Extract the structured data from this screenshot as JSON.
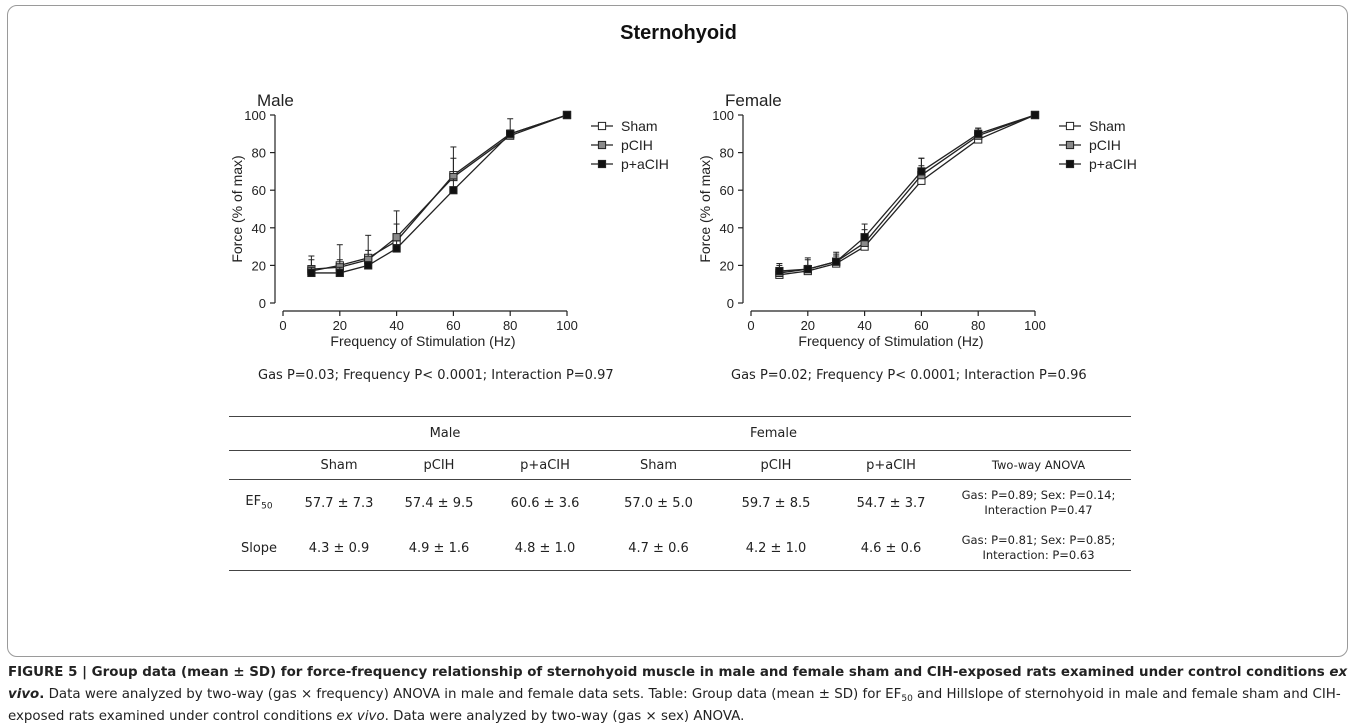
{
  "figure_title": "Sternohyoid",
  "chart_data": [
    {
      "type": "line",
      "title": "Male",
      "xlabel": "Frequency of Stimulation (Hz)",
      "ylabel": "Force  (% of max)",
      "xlim": [
        0,
        100
      ],
      "ylim": [
        0,
        100
      ],
      "xticks": [
        0,
        20,
        40,
        60,
        80,
        100
      ],
      "yticks": [
        0,
        20,
        40,
        60,
        80,
        100
      ],
      "x": [
        10,
        20,
        30,
        40,
        60,
        80,
        100
      ],
      "legend_position": "right",
      "series": [
        {
          "name": "Sham",
          "marker": "open-square",
          "values": [
            17,
            20,
            24,
            33,
            68,
            90,
            100
          ],
          "sd": [
            8,
            11,
            12,
            16,
            15,
            8,
            0
          ]
        },
        {
          "name": "pCIH",
          "marker": "gray-square",
          "values": [
            18,
            19,
            23,
            35,
            67,
            89,
            100
          ],
          "sd": [
            5,
            4,
            5,
            7,
            10,
            3,
            0
          ]
        },
        {
          "name": "p+aCIH",
          "marker": "filled-square",
          "values": [
            16,
            16,
            20,
            29,
            60,
            90,
            100
          ],
          "sd": [
            3,
            3,
            2,
            4,
            6,
            2,
            0
          ]
        }
      ],
      "stats_text": "Gas P=0.03; Frequency P< 0.0001; Interaction P=0.97"
    },
    {
      "type": "line",
      "title": "Female",
      "xlabel": "Frequency of Stimulation (Hz)",
      "ylabel": "Force  (% of max)",
      "xlim": [
        0,
        100
      ],
      "ylim": [
        0,
        100
      ],
      "xticks": [
        0,
        20,
        40,
        60,
        80,
        100
      ],
      "yticks": [
        0,
        20,
        40,
        60,
        80,
        100
      ],
      "x": [
        10,
        20,
        30,
        40,
        60,
        80,
        100
      ],
      "legend_position": "right",
      "series": [
        {
          "name": "Sham",
          "marker": "open-square",
          "values": [
            15,
            17,
            21,
            30,
            65,
            87,
            100
          ],
          "sd": [
            3,
            3,
            4,
            6,
            8,
            5,
            0
          ]
        },
        {
          "name": "pCIH",
          "marker": "gray-square",
          "values": [
            16,
            18,
            22,
            32,
            68,
            89,
            100
          ],
          "sd": [
            4,
            6,
            5,
            7,
            9,
            4,
            0
          ]
        },
        {
          "name": "p+aCIH",
          "marker": "filled-square",
          "values": [
            17,
            18,
            22,
            35,
            70,
            90,
            100
          ],
          "sd": [
            4,
            5,
            4,
            7,
            7,
            3,
            0
          ]
        }
      ],
      "stats_text": "Gas P=0.02; Frequency P< 0.0001; Interaction P=0.96"
    }
  ],
  "table": {
    "group_male": "Male",
    "group_female": "Female",
    "columns": [
      "Sham",
      "pCIH",
      "p+aCIH",
      "Sham",
      "pCIH",
      "p+aCIH"
    ],
    "anova_header": "Two-way ANOVA",
    "rows": [
      {
        "label": "EF",
        "label_sub": "50",
        "values": [
          "57.7 ± 7.3",
          "57.4 ± 9.5",
          "60.6 ± 3.6",
          "57.0 ± 5.0",
          "59.7 ± 8.5",
          "54.7 ± 3.7"
        ],
        "anova_line1": "Gas: P=0.89; Sex: P=0.14;",
        "anova_line2": "Interaction P=0.47"
      },
      {
        "label": "Slope",
        "label_sub": "",
        "values": [
          "4.3 ± 0.9",
          "4.9 ± 1.6",
          "4.8 ± 1.0",
          "4.7  ± 0.6",
          "4.2 ± 1.0",
          "4.6 ± 0.6"
        ],
        "anova_line1": "Gas: P=0.81; Sex: P=0.85;",
        "anova_line2": "Interaction: P=0.63"
      }
    ]
  },
  "caption": {
    "label": "FIGURE 5 | ",
    "title_bold": "Group data (mean ± SD) for force-frequency relationship of sternohyoid muscle in male and female sham and CIH-exposed rats examined under control conditions ",
    "title_bold_italic": "ex vivo",
    "title_end": ".",
    "text1": " Data were analyzed by two-way (gas × frequency) ANOVA in male and female data sets. Table: Group data (mean ± SD) for EF",
    "text1_sub": "50",
    "text2": " and Hillslope of sternohyoid in male and female sham and CIH-exposed rats examined under control conditions ",
    "text2_italic": "ex vivo",
    "text3": ". Data were analyzed by two-way (gas × sex) ANOVA."
  }
}
